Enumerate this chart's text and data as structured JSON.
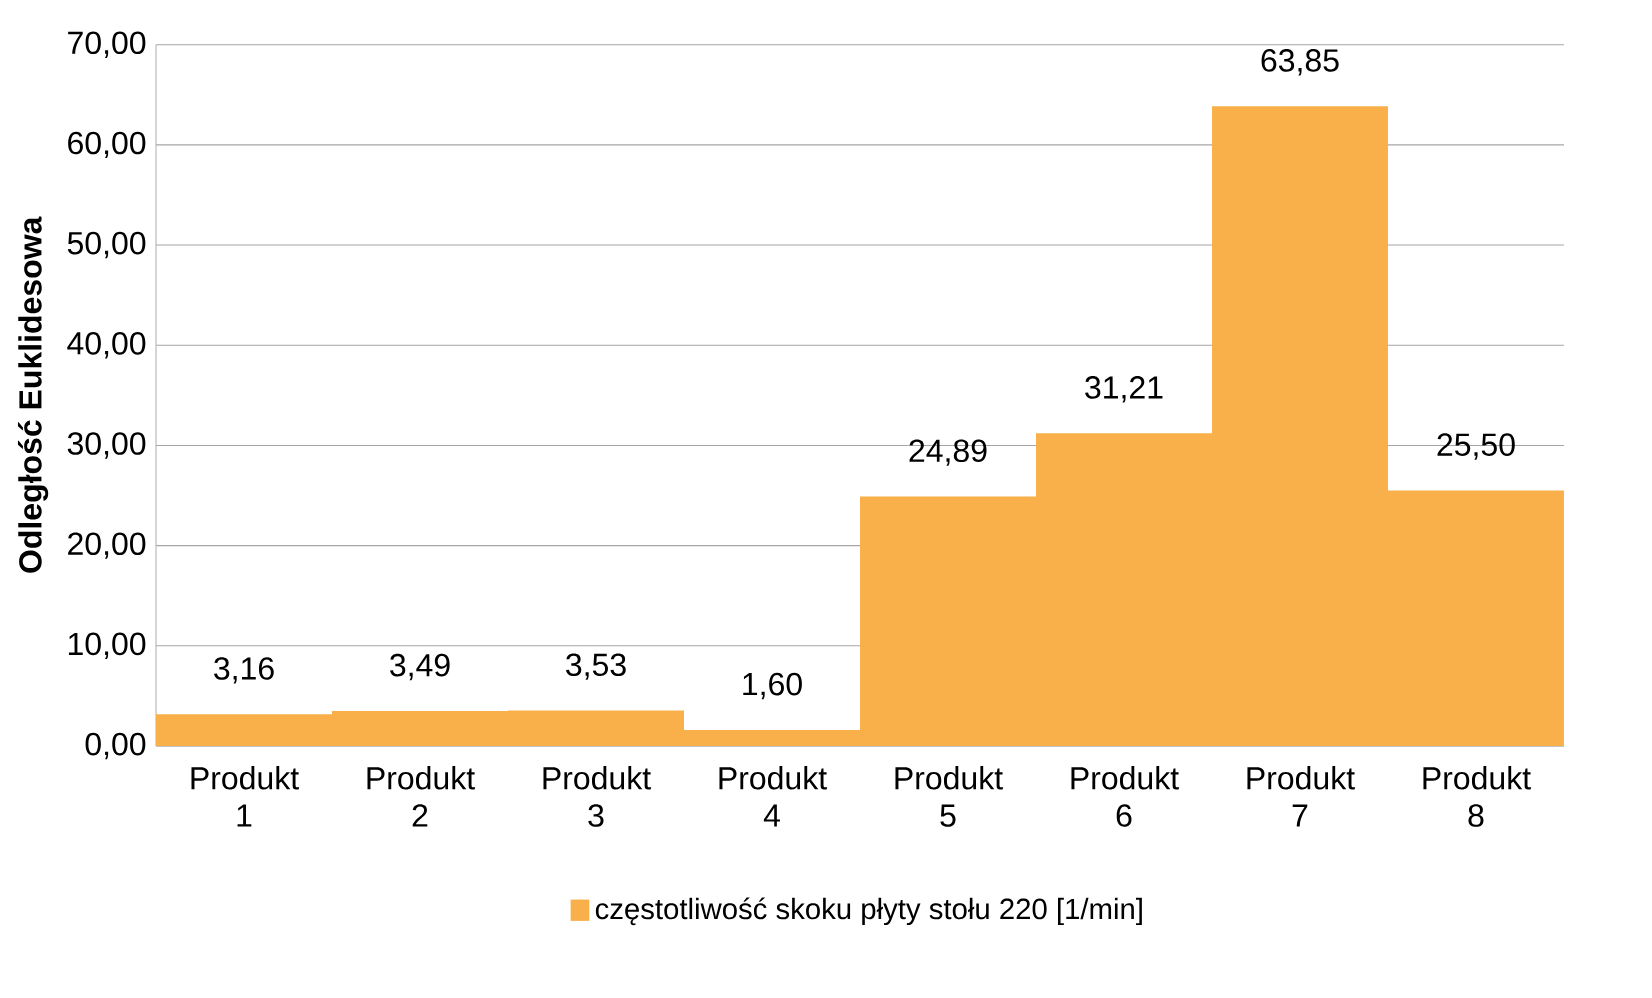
{
  "chart_data": {
    "type": "bar",
    "ylabel": "Odległość Euklidesowa",
    "categories": [
      "Produkt 1",
      "Produkt 2",
      "Produkt 3",
      "Produkt 4",
      "Produkt 5",
      "Produkt 6",
      "Produkt 7",
      "Produkt 8"
    ],
    "series": [
      {
        "name": "częstotliwość skoku płyty stołu 220 [1/min]",
        "color": "#f9b04a",
        "values": [
          3.16,
          3.49,
          3.53,
          1.6,
          24.89,
          31.21,
          63.85,
          25.5
        ],
        "value_labels": [
          "3,16",
          "3,49",
          "3,53",
          "1,60",
          "24,89",
          "31,21",
          "63,85",
          "25,50"
        ]
      }
    ],
    "ylim": [
      0,
      70
    ],
    "yticks": [
      {
        "value": 0,
        "label": "0,00"
      },
      {
        "value": 10,
        "label": "10,00"
      },
      {
        "value": 20,
        "label": "20,00"
      },
      {
        "value": 30,
        "label": "30,00"
      },
      {
        "value": 40,
        "label": "40,00"
      },
      {
        "value": 50,
        "label": "50,00"
      },
      {
        "value": 60,
        "label": "60,00"
      },
      {
        "value": 70,
        "label": "70,00"
      }
    ],
    "grid": "y",
    "legend": "bottom"
  }
}
